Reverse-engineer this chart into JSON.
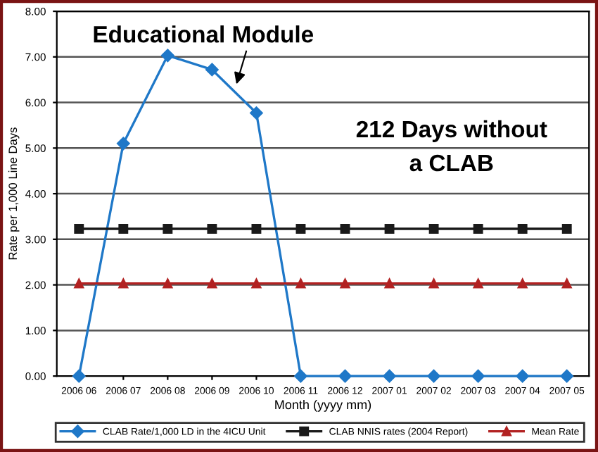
{
  "chart_data": {
    "type": "line",
    "xlabel": "Month (yyyy mm)",
    "ylabel": "Rate per 1,000 Line Days",
    "categories": [
      "2006 06",
      "2006 07",
      "2006 08",
      "2006 09",
      "2006 10",
      "2006 11",
      "2006 12",
      "2007 01",
      "2007 02",
      "2007 03",
      "2007 04",
      "2007 05"
    ],
    "series": [
      {
        "name": "CLAB Rate/1,000 LD in the 4ICU Unit",
        "color": "#1f78c8",
        "marker": "diamond",
        "values": [
          0,
          5.1,
          7.03,
          6.72,
          5.77,
          0,
          0,
          0,
          0,
          0,
          0,
          0
        ]
      },
      {
        "name": "CLAB NNIS rates (2004 Report)",
        "color": "#1a1a1a",
        "marker": "square",
        "values": [
          3.23,
          3.23,
          3.23,
          3.23,
          3.23,
          3.23,
          3.23,
          3.23,
          3.23,
          3.23,
          3.23,
          3.23
        ]
      },
      {
        "name": "Mean Rate",
        "color": "#b22222",
        "marker": "triangle",
        "values": [
          2.03,
          2.03,
          2.03,
          2.03,
          2.03,
          2.03,
          2.03,
          2.03,
          2.03,
          2.03,
          2.03,
          2.03
        ]
      }
    ],
    "ylim": [
      0,
      8
    ],
    "yticks": [
      {
        "value": 0,
        "label": "0.00"
      },
      {
        "value": 1,
        "label": "1.00"
      },
      {
        "value": 2,
        "label": "2.00"
      },
      {
        "value": 3,
        "label": "3.00"
      },
      {
        "value": 4,
        "label": "4.00"
      },
      {
        "value": 5,
        "label": "5.00"
      },
      {
        "value": 6,
        "label": "6.00"
      },
      {
        "value": 7,
        "label": "7.00"
      },
      {
        "value": 8,
        "label": "8.00"
      }
    ],
    "grid": "y",
    "legend": "bottom",
    "line_style": "solid",
    "annotations": [
      "Educational Module",
      "212 Days without\na CLAB"
    ]
  }
}
